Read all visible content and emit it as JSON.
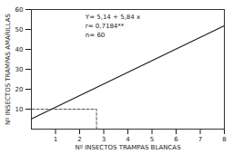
{
  "chart_data": {
    "type": "line",
    "title": "",
    "xlabel": "Nº INSECTOS TRAMPAS BLANCAS",
    "ylabel": "Nº INSECTOS TRAMPAS AMARILLAS",
    "series": [
      {
        "x": [
          0,
          8
        ],
        "values": [
          5.14,
          51.86
        ],
        "color": "#1a1a1a",
        "line_style": "solid"
      },
      {
        "x": [
          2.7,
          2.7,
          0
        ],
        "values": [
          0,
          10,
          10
        ],
        "color": "#2a2a2a",
        "line_style": "dashed"
      }
    ],
    "annotations": [
      "Y= 5,14 + 5,84 x",
      "r= 0,7184**",
      "n= 60"
    ],
    "xlim": [
      0,
      8
    ],
    "ylim": [
      0,
      60
    ],
    "xticks": [
      1,
      2,
      3,
      4,
      5,
      6,
      7,
      8
    ],
    "yticks": [
      10,
      20,
      30,
      40,
      50,
      60
    ],
    "grid": false
  }
}
